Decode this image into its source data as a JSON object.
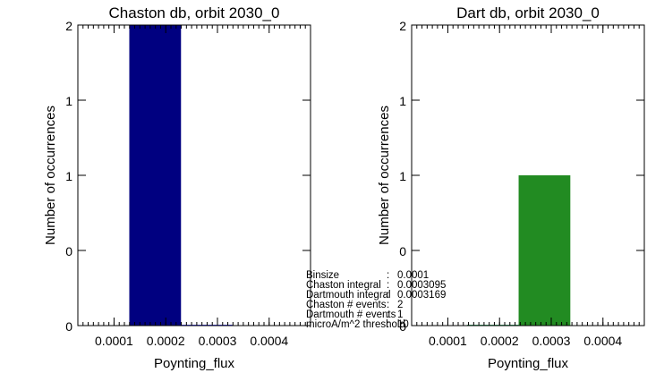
{
  "chart_data": [
    {
      "type": "bar",
      "title": "Chaston db, orbit 2030_0",
      "xlabel": "Poynting_flux",
      "ylabel": "Number of occurrences",
      "xlim": [
        3e-05,
        0.00048
      ],
      "ylim": [
        0,
        2
      ],
      "x_ticks": [
        0.0001,
        0.0002,
        0.0003,
        0.0004
      ],
      "x_tick_labels": [
        "0.0001",
        "0.0002",
        "0.0003",
        "0.0004"
      ],
      "y_ticks": [
        0,
        0.5,
        1,
        1.5,
        2
      ],
      "y_tick_labels": [
        "0",
        "0",
        "1",
        "1",
        "2"
      ],
      "bars": [
        {
          "x0": 0.0001295,
          "x1": 0.0002295,
          "value": 2
        }
      ],
      "bar_color": "#000080",
      "minor_baseline": {
        "x0": 0.000229,
        "x1": 0.000329,
        "color": "#4040ff"
      },
      "grid": false
    },
    {
      "type": "bar",
      "title": "Dart db, orbit 2030_0",
      "xlabel": "Poynting_flux",
      "ylabel": "Number of occurrences",
      "xlim": [
        3e-05,
        0.00048
      ],
      "ylim": [
        0,
        2
      ],
      "x_ticks": [
        0.0001,
        0.0002,
        0.0003,
        0.0004
      ],
      "x_tick_labels": [
        "0.0001",
        "0.0002",
        "0.0003",
        "0.0004"
      ],
      "y_ticks": [
        0,
        0.5,
        1,
        1.5,
        2
      ],
      "y_tick_labels": [
        "0",
        "0",
        "1",
        "1",
        "2"
      ],
      "bars": [
        {
          "x0": 0.0002369,
          "x1": 0.0003369,
          "value": 1
        }
      ],
      "bar_color": "#228b22",
      "minor_baseline": {
        "x0": 0.000137,
        "x1": 0.000237,
        "color": "#3cb371"
      },
      "grid": false
    }
  ],
  "stats": [
    {
      "label": "Binsize",
      "sep": ":",
      "value": "0.0001"
    },
    {
      "label": "Chaston integral",
      "sep": ":",
      "value": "0.0003095"
    },
    {
      "label": "Dartmouth integral",
      "sep": ":",
      "value": "0.0003169"
    },
    {
      "label": "Chaston # events",
      "sep": ":",
      "value": "2"
    },
    {
      "label": "Dartmouth # events",
      "sep": ":",
      "value": "1"
    },
    {
      "label": "microA/m^2 threshold",
      "sep": ":",
      "value": "10"
    }
  ]
}
